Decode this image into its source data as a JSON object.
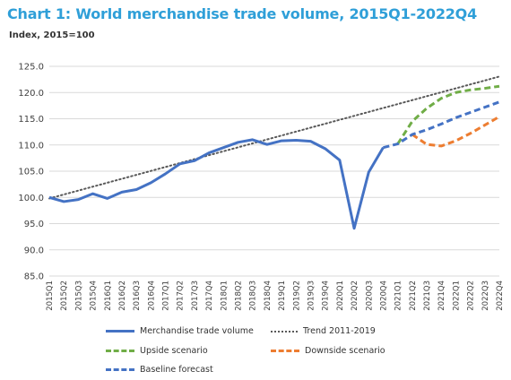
{
  "title": "Chart 1: World merchandise trade volume, 2015Q1-2022Q4",
  "subtitle": "Index, 2015=100",
  "colors": {
    "merchandise": "#4472c4",
    "trend": "#595959",
    "upside": "#70ad47",
    "downside": "#ed7d31",
    "baseline": "#4472c4",
    "grid": "#d9d9d9",
    "title": "#2f9fd8"
  },
  "chart_data": {
    "type": "line",
    "title": "Chart 1: World merchandise trade volume, 2015Q1-2022Q4",
    "ylabel": "Index, 2015=100",
    "ylim": [
      85,
      125
    ],
    "y_ticks": [
      "85.0",
      "90.0",
      "95.0",
      "100.0",
      "105.0",
      "110.0",
      "115.0",
      "120.0",
      "125.0"
    ],
    "grid": true,
    "legend_position": "bottom",
    "categories": [
      "2015Q1",
      "2015Q2",
      "2015Q3",
      "2015Q4",
      "2016Q1",
      "2016Q2",
      "2016Q3",
      "2016Q4",
      "2017Q1",
      "2017Q2",
      "2017Q3",
      "2017Q4",
      "2018Q1",
      "2018Q2",
      "2018Q3",
      "2018Q4",
      "2019Q1",
      "2019Q2",
      "2019Q3",
      "2019Q4",
      "2020Q1",
      "2020Q2",
      "2020Q3",
      "2020Q4",
      "2021Q1",
      "2021Q2",
      "2021Q3",
      "2021Q4",
      "2022Q1",
      "2022Q2",
      "2022Q3",
      "2022Q4"
    ],
    "series": [
      {
        "name": "Merchandise trade volume",
        "style": "solid",
        "values": [
          100.0,
          99.2,
          99.6,
          100.7,
          99.8,
          101.0,
          101.5,
          102.8,
          104.5,
          106.4,
          107.0,
          108.5,
          109.5,
          110.5,
          111.0,
          110.1,
          110.8,
          110.9,
          110.7,
          109.3,
          107.1,
          94.1,
          104.8,
          109.5,
          null,
          null,
          null,
          null,
          null,
          null,
          null,
          null
        ]
      },
      {
        "name": "Trend 2011-2019",
        "style": "dotted",
        "values": [
          99.8,
          100.55,
          101.3,
          102.05,
          102.8,
          103.55,
          104.3,
          105.05,
          105.8,
          106.55,
          107.3,
          108.05,
          108.8,
          109.55,
          110.3,
          111.05,
          111.8,
          112.55,
          113.3,
          114.05,
          114.8,
          115.55,
          116.3,
          117.05,
          117.8,
          118.55,
          119.3,
          120.05,
          120.8,
          121.55,
          122.3,
          123.05
        ]
      },
      {
        "name": "Upside scenario",
        "style": "dashed",
        "values": [
          null,
          null,
          null,
          null,
          null,
          null,
          null,
          null,
          null,
          null,
          null,
          null,
          null,
          null,
          null,
          null,
          null,
          null,
          null,
          null,
          null,
          null,
          null,
          null,
          110.2,
          114.5,
          117.0,
          118.9,
          120.0,
          120.5,
          120.8,
          121.2
        ]
      },
      {
        "name": "Downside scenario",
        "style": "dashed",
        "values": [
          null,
          null,
          null,
          null,
          null,
          null,
          null,
          null,
          null,
          null,
          null,
          null,
          null,
          null,
          null,
          null,
          null,
          null,
          null,
          null,
          null,
          null,
          null,
          null,
          null,
          112.0,
          110.1,
          109.8,
          110.8,
          112.2,
          113.8,
          115.4
        ]
      },
      {
        "name": "Baseline forecast",
        "style": "dashed",
        "values": [
          null,
          null,
          null,
          null,
          null,
          null,
          null,
          null,
          null,
          null,
          null,
          null,
          null,
          null,
          null,
          null,
          null,
          null,
          null,
          null,
          null,
          null,
          null,
          109.5,
          110.2,
          112.0,
          112.9,
          114.0,
          115.2,
          116.2,
          117.2,
          118.2
        ]
      }
    ]
  },
  "legend": {
    "merchandise": "Merchandise trade volume",
    "trend": "Trend 2011-2019",
    "upside": "Upside scenario",
    "downside": "Downside scenario",
    "baseline": "Baseline forecast"
  }
}
